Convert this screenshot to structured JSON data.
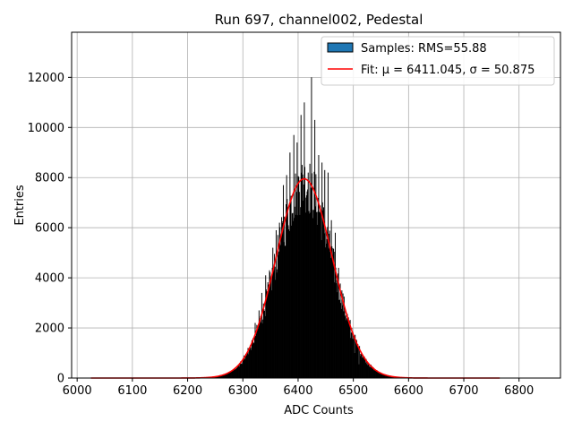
{
  "chart_data": {
    "type": "bar",
    "title": "Run 697, channel002, Pedestal",
    "xlabel": "ADC Counts",
    "ylabel": "Entries",
    "xlim": [
      5990,
      6875
    ],
    "ylim": [
      0,
      13800
    ],
    "xticks": [
      6000,
      6100,
      6200,
      6300,
      6400,
      6500,
      6600,
      6700,
      6800
    ],
    "yticks": [
      0,
      2000,
      4000,
      6000,
      8000,
      10000,
      12000
    ],
    "grid": true,
    "legend_position": "top-right",
    "legend": [
      {
        "label": "Samples: RMS=55.88",
        "kind": "patch",
        "color": "#1f77b4"
      },
      {
        "label": "Fit: μ = 6411.045, σ = 50.875",
        "kind": "line",
        "color": "#ff0000"
      }
    ],
    "histogram": {
      "name": "Samples: RMS=55.88",
      "color": "#000000",
      "bin_width": 1,
      "x_range": [
        6025,
        6765
      ],
      "rms": 55.88,
      "peak_bins": [
        {
          "x": 6418,
          "y": 8200
        },
        {
          "x": 6424,
          "y": 12000
        },
        {
          "x": 6411,
          "y": 11000
        },
        {
          "x": 6405,
          "y": 10500
        },
        {
          "x": 6398,
          "y": 9400
        },
        {
          "x": 6392,
          "y": 9700
        },
        {
          "x": 6385,
          "y": 9000
        },
        {
          "x": 6430,
          "y": 10300
        },
        {
          "x": 6437,
          "y": 8900
        },
        {
          "x": 6443,
          "y": 8600
        },
        {
          "x": 6448,
          "y": 8300
        },
        {
          "x": 6454,
          "y": 8200
        },
        {
          "x": 6379,
          "y": 8100
        },
        {
          "x": 6373,
          "y": 7700
        },
        {
          "x": 6366,
          "y": 6200
        },
        {
          "x": 6360,
          "y": 5900
        },
        {
          "x": 6354,
          "y": 5200
        },
        {
          "x": 6348,
          "y": 4300
        },
        {
          "x": 6341,
          "y": 4100
        },
        {
          "x": 6334,
          "y": 3400
        },
        {
          "x": 6460,
          "y": 6300
        },
        {
          "x": 6467,
          "y": 5800
        },
        {
          "x": 6473,
          "y": 4400
        },
        {
          "x": 6479,
          "y": 3500
        },
        {
          "x": 6486,
          "y": 2500
        },
        {
          "x": 6329,
          "y": 2700
        },
        {
          "x": 6322,
          "y": 2200
        },
        {
          "x": 6316,
          "y": 1500
        },
        {
          "x": 6309,
          "y": 1200
        },
        {
          "x": 6302,
          "y": 900
        },
        {
          "x": 6495,
          "y": 1600
        },
        {
          "x": 6502,
          "y": 1000
        },
        {
          "x": 6510,
          "y": 550
        },
        {
          "x": 6294,
          "y": 600
        },
        {
          "x": 6288,
          "y": 400
        }
      ]
    },
    "fit": {
      "name": "Fit: μ = 6411.045, σ = 50.875",
      "color": "#ff0000",
      "mu": 6411.045,
      "sigma": 50.875,
      "amplitude": 7950,
      "x_range": [
        6025,
        6765
      ]
    }
  }
}
